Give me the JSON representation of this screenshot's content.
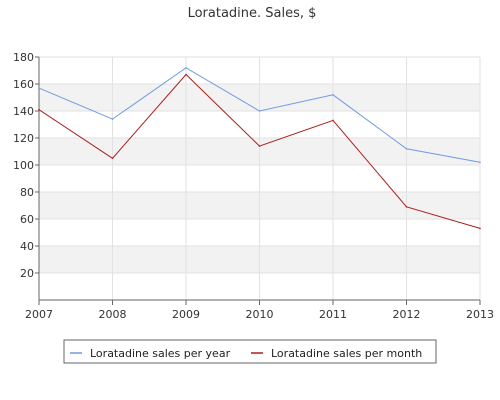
{
  "chart_data": {
    "type": "line",
    "title": "Loratadine. Sales, $",
    "xlabel": "",
    "ylabel": "",
    "x": [
      2007,
      2008,
      2009,
      2010,
      2011,
      2012,
      2013
    ],
    "xlim": [
      2007,
      2013
    ],
    "ylim": [
      0,
      180
    ],
    "y_ticks": [
      20,
      40,
      60,
      80,
      100,
      120,
      140,
      160,
      180
    ],
    "grid": true,
    "legend_position": "bottom",
    "series": [
      {
        "name": "Loratadine sales per year",
        "color": "#6f9be0",
        "values": [
          157,
          134,
          172,
          140,
          152,
          112,
          102
        ]
      },
      {
        "name": "Loratadine sales per month",
        "color": "#aa2020",
        "values": [
          141,
          105,
          167,
          114,
          133,
          69,
          53
        ]
      }
    ]
  }
}
